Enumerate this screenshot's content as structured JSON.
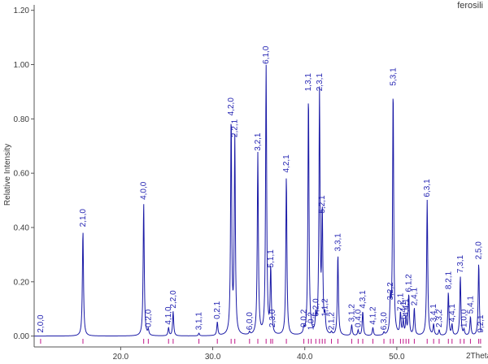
{
  "chart_data": {
    "type": "line",
    "title": "ferosili",
    "xlabel": "2Theta",
    "ylabel": "Relative Intensity",
    "xlim": [
      10.6,
      59.2
    ],
    "ylim": [
      -0.04,
      1.22
    ],
    "x_ticks": [
      {
        "value": 20.0,
        "label": "20.0"
      },
      {
        "value": 30.0,
        "label": "30.0"
      },
      {
        "value": 40.0,
        "label": "40.0"
      },
      {
        "value": 50.0,
        "label": "50.0"
      }
    ],
    "y_ticks": [
      {
        "value": 0.0,
        "label": "0.00"
      },
      {
        "value": 0.2,
        "label": "0.20"
      },
      {
        "value": 0.4,
        "label": "0.40"
      },
      {
        "value": 0.6,
        "label": "0.60"
      },
      {
        "value": 0.8,
        "label": "0.80"
      },
      {
        "value": 1.0,
        "label": "1.00"
      },
      {
        "value": 1.2,
        "label": "1.20"
      }
    ],
    "grid": false,
    "colors": {
      "line": "#1a1aa6",
      "ticks": "#c0188a",
      "axes": "#555555"
    },
    "peaks": [
      {
        "x": 11.3,
        "y": 0.0,
        "label": "2,0,0"
      },
      {
        "x": 15.9,
        "y": 0.39,
        "label": "2,1,0"
      },
      {
        "x": 22.5,
        "y": 0.49,
        "label": "4,0,0"
      },
      {
        "x": 23.0,
        "y": 0.02,
        "label": "0,2,0"
      },
      {
        "x": 25.2,
        "y": 0.03,
        "label": "4,1,0"
      },
      {
        "x": 25.7,
        "y": 0.09,
        "label": "2,2,0"
      },
      {
        "x": 28.5,
        "y": 0.01,
        "label": "3,1,1"
      },
      {
        "x": 30.5,
        "y": 0.05,
        "label": "0,2,1"
      },
      {
        "x": 32.0,
        "y": 0.8,
        "label": "4,2,0"
      },
      {
        "x": 32.4,
        "y": 0.72,
        "label": "2,2,1"
      },
      {
        "x": 34.0,
        "y": 0.01,
        "label": "6,0,0"
      },
      {
        "x": 34.9,
        "y": 0.67,
        "label": "3,2,1"
      },
      {
        "x": 35.8,
        "y": 0.99,
        "label": "6,1,0"
      },
      {
        "x": 36.3,
        "y": 0.24,
        "label": "5,1,1"
      },
      {
        "x": 36.5,
        "y": 0.02,
        "label": "2,3,0"
      },
      {
        "x": 38.0,
        "y": 0.59,
        "label": "4,2,1"
      },
      {
        "x": 39.9,
        "y": 0.02,
        "label": "0,0,2"
      },
      {
        "x": 40.4,
        "y": 0.89,
        "label": "1,3,1"
      },
      {
        "x": 40.7,
        "y": 0.01,
        "label": "1,0,2"
      },
      {
        "x": 41.2,
        "y": 0.06,
        "label": "6,2,0"
      },
      {
        "x": 41.6,
        "y": 0.89,
        "label": "2,3,1"
      },
      {
        "x": 41.9,
        "y": 0.44,
        "label": "5,2,1"
      },
      {
        "x": 42.2,
        "y": 0.06,
        "label": "1,1,2"
      },
      {
        "x": 42.9,
        "y": 0.01,
        "label": "2,1,2"
      },
      {
        "x": 43.6,
        "y": 0.3,
        "label": "3,3,1"
      },
      {
        "x": 45.1,
        "y": 0.04,
        "label": "3,1,2"
      },
      {
        "x": 45.8,
        "y": 0.02,
        "label": "0,4,0"
      },
      {
        "x": 46.3,
        "y": 0.09,
        "label": "4,3,1"
      },
      {
        "x": 47.4,
        "y": 0.03,
        "label": "4,1,2"
      },
      {
        "x": 48.6,
        "y": 0.01,
        "label": "6,3,0"
      },
      {
        "x": 49.3,
        "y": 0.12,
        "label": "3,2,2"
      },
      {
        "x": 49.6,
        "y": 0.91,
        "label": "5,3,1"
      },
      {
        "x": 50.4,
        "y": 0.08,
        "label": "7,2,1"
      },
      {
        "x": 50.7,
        "y": 0.05,
        "label": "6,4,1"
      },
      {
        "x": 51.0,
        "y": 0.06,
        "label": "4,4,1"
      },
      {
        "x": 51.3,
        "y": 0.15,
        "label": "6,1,2"
      },
      {
        "x": 51.9,
        "y": 0.1,
        "label": "2,4,1"
      },
      {
        "x": 53.3,
        "y": 0.5,
        "label": "6,3,1"
      },
      {
        "x": 54.0,
        "y": 0.04,
        "label": "3,4,1"
      },
      {
        "x": 54.6,
        "y": 0.02,
        "label": "2,3,2"
      },
      {
        "x": 55.6,
        "y": 0.16,
        "label": "8,2,1"
      },
      {
        "x": 56.0,
        "y": 0.04,
        "label": "4,4,1"
      },
      {
        "x": 56.9,
        "y": 0.22,
        "label": "7,3,1"
      },
      {
        "x": 57.3,
        "y": 0.02,
        "label": "1,0,0"
      },
      {
        "x": 58.0,
        "y": 0.07,
        "label": "5,4,1"
      },
      {
        "x": 58.9,
        "y": 0.27,
        "label": "2,5,0"
      },
      {
        "x": 59.1,
        "y": 0.0,
        "label": "9,2,1"
      }
    ],
    "peak_width": 0.07
  }
}
